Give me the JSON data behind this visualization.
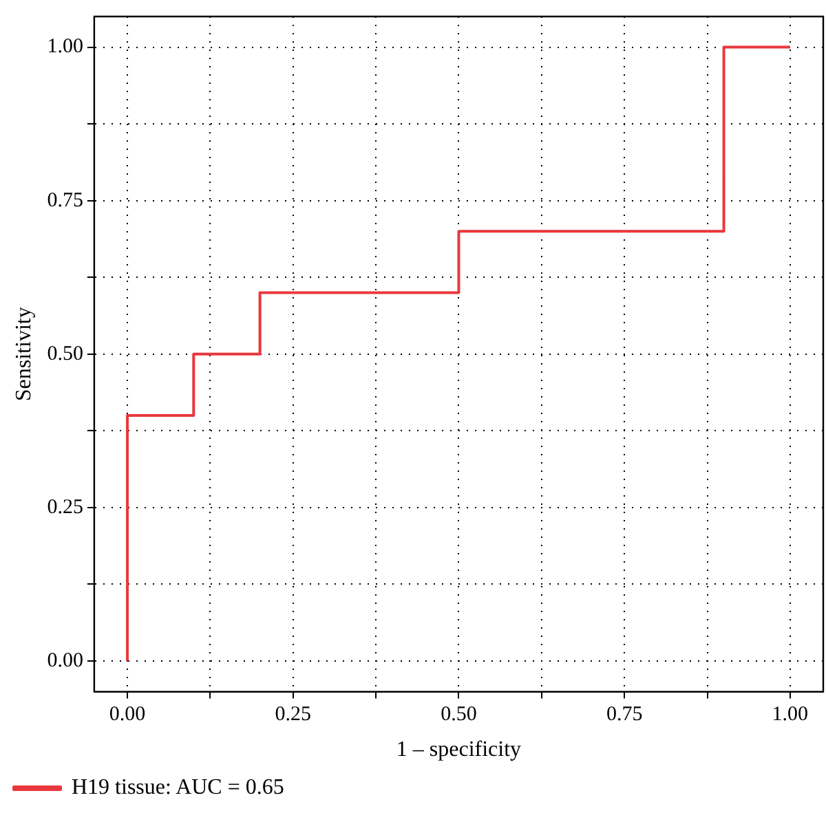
{
  "chart_data": {
    "type": "step",
    "xlabel": "1 – specificity",
    "ylabel": "Sensitivity",
    "x": [
      0,
      0,
      0.1,
      0.2,
      0.5,
      0.9,
      1
    ],
    "series": [
      {
        "name": "H19 tissue: AUC = 0.65",
        "color": "#e8383d",
        "values": [
          0,
          0.4,
          0.5,
          0.6,
          0.7,
          1,
          1
        ]
      }
    ],
    "xlim": [
      -0.05,
      1.05
    ],
    "ylim": [
      -0.05,
      1.05
    ],
    "xticks": [
      {
        "value": 0,
        "label": "0.00"
      },
      {
        "value": 0.125,
        "label": null
      },
      {
        "value": 0.25,
        "label": "0.25"
      },
      {
        "value": 0.375,
        "label": null
      },
      {
        "value": 0.5,
        "label": "0.50"
      },
      {
        "value": 0.625,
        "label": null
      },
      {
        "value": 0.75,
        "label": "0.75"
      },
      {
        "value": 0.875,
        "label": null
      },
      {
        "value": 1,
        "label": "1.00"
      }
    ],
    "yticks": [
      {
        "value": 0,
        "label": "0.00"
      },
      {
        "value": 0.125,
        "label": null
      },
      {
        "value": 0.25,
        "label": "0.25"
      },
      {
        "value": 0.375,
        "label": null
      },
      {
        "value": 0.5,
        "label": "0.50"
      },
      {
        "value": 0.625,
        "label": null
      },
      {
        "value": 0.75,
        "label": "0.75"
      },
      {
        "value": 0.875,
        "label": null
      },
      {
        "value": 1,
        "label": "1.00"
      }
    ],
    "grid": true,
    "legend": "bottom left",
    "line_style": "solid",
    "marker": "none"
  }
}
